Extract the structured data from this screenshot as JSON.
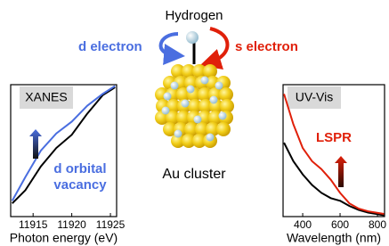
{
  "diagram": {
    "top_label": "Hydrogen",
    "left_label": "d electron",
    "right_label": "s electron",
    "bottom_label": "Au cluster"
  },
  "chart_data": [
    {
      "type": "line",
      "title": "XANES",
      "x_label": "Photon energy (eV)",
      "annotation": [
        "d orbital",
        "vacancy"
      ],
      "xlim": [
        11912.1,
        11925.8
      ],
      "xticks": [
        11915,
        11920,
        11925
      ],
      "ylim": [
        0,
        1
      ],
      "x": [
        11912.3,
        11914,
        11916,
        11918,
        11920,
        11922,
        11924,
        11925.6
      ],
      "series": [
        {
          "color": "#000000",
          "values": [
            0.1,
            0.2,
            0.38,
            0.52,
            0.62,
            0.78,
            0.92,
            0.98
          ]
        },
        {
          "color": "#4a6ee0",
          "values": [
            0.12,
            0.3,
            0.5,
            0.63,
            0.72,
            0.84,
            0.93,
            0.99
          ]
        }
      ],
      "arrow_colors": [
        "#4a6ee0",
        "#111111"
      ]
    },
    {
      "type": "line",
      "title": "UV-Vis",
      "x_label": "Wavelength (nm)",
      "annotation": [
        "LSPR"
      ],
      "xlim": [
        295,
        838
      ],
      "xticks": [
        400,
        600,
        800
      ],
      "ylim": [
        0,
        1
      ],
      "x": [
        300,
        350,
        400,
        450,
        500,
        550,
        600,
        650,
        700,
        750,
        835
      ],
      "series": [
        {
          "color": "#000000",
          "values": [
            0.56,
            0.42,
            0.32,
            0.24,
            0.18,
            0.14,
            0.12,
            0.08,
            0.05,
            0.03,
            0.01
          ]
        },
        {
          "color": "#e0200a",
          "values": [
            0.93,
            0.7,
            0.52,
            0.42,
            0.36,
            0.28,
            0.18,
            0.1,
            0.06,
            0.04,
            0.02
          ]
        }
      ],
      "arrow_colors": [
        "#e0200a",
        "#2a0a00"
      ]
    }
  ]
}
